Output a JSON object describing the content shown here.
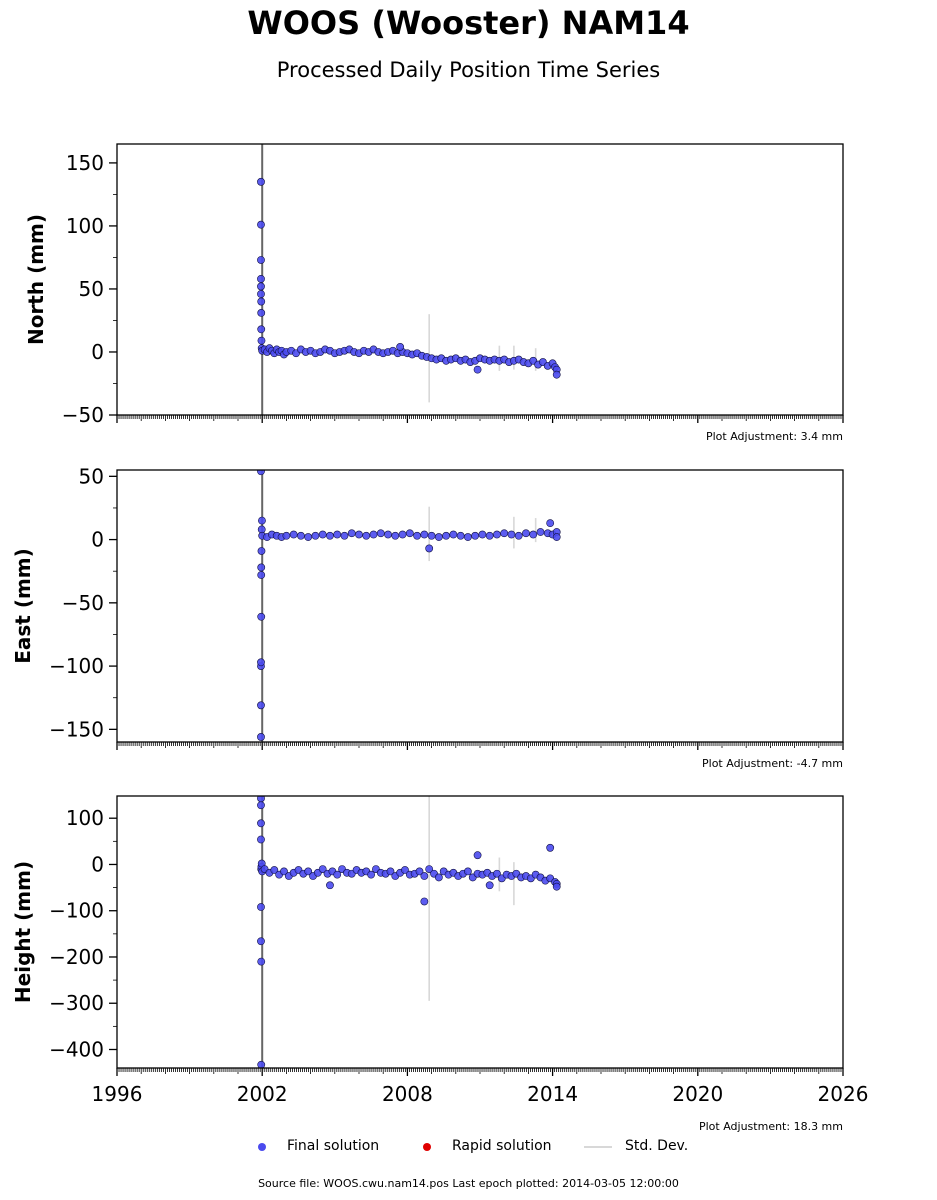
{
  "header": {
    "title": "WOOS (Wooster) NAM14",
    "subtitle": "Processed Daily Position Time Series"
  },
  "legend": {
    "final_label": "Final solution",
    "rapid_label": "Rapid solution",
    "std_label": "Std. Dev."
  },
  "footer": {
    "source": "Source file: WOOS.cwu.nam14.pos  Last epoch plotted: 2014-03-05 12:00:00"
  },
  "colors": {
    "final": "#4a4aee",
    "rapid": "#e00000",
    "std": "#d8d8d8",
    "vline": "#666666"
  },
  "chart_data": [
    {
      "type": "scatter",
      "ylabel": "North (mm)",
      "ylim": [
        -50,
        165
      ],
      "yticks": [
        -50,
        0,
        50,
        100,
        150
      ],
      "xlim": [
        1996,
        2026
      ],
      "xticks": [
        1996,
        2002,
        2008,
        2014,
        2020,
        2026
      ],
      "show_xtick_labels": false,
      "adjustment": "Plot Adjustment: 3.4 mm",
      "vline_x": 2002.0,
      "series": [
        {
          "name": "Final solution",
          "x": [
            2001.95,
            2001.95,
            2001.95,
            2001.95,
            2001.95,
            2001.95,
            2001.96,
            2001.96,
            2001.96,
            2001.97,
            2001.98,
            2002.0,
            2002.1,
            2002.2,
            2002.3,
            2002.4,
            2002.5,
            2002.6,
            2002.7,
            2002.8,
            2002.9,
            2003.0,
            2003.2,
            2003.4,
            2003.6,
            2003.8,
            2004.0,
            2004.2,
            2004.4,
            2004.6,
            2004.8,
            2005.0,
            2005.2,
            2005.4,
            2005.6,
            2005.8,
            2006.0,
            2006.2,
            2006.4,
            2006.6,
            2006.8,
            2007.0,
            2007.2,
            2007.4,
            2007.6,
            2007.8,
            2008.0,
            2008.2,
            2008.4,
            2008.6,
            2008.8,
            2009.0,
            2009.2,
            2009.4,
            2009.6,
            2009.8,
            2010.0,
            2010.2,
            2010.4,
            2010.6,
            2010.8,
            2011.0,
            2011.2,
            2011.4,
            2011.6,
            2011.8,
            2012.0,
            2012.2,
            2012.4,
            2012.6,
            2012.8,
            2013.0,
            2013.2,
            2013.4,
            2013.6,
            2013.8,
            2014.0,
            2014.1,
            2014.17,
            2014.17,
            2007.7,
            2010.9
          ],
          "y": [
            135,
            101,
            73,
            58,
            52,
            46,
            40,
            31,
            18,
            9,
            3,
            1,
            2,
            0,
            3,
            1,
            -1,
            2,
            0,
            1,
            -2,
            0,
            1,
            -1,
            2,
            0,
            1,
            -1,
            0,
            2,
            1,
            -1,
            0,
            1,
            2,
            0,
            -1,
            1,
            0,
            2,
            0,
            -1,
            0,
            1,
            -1,
            0,
            -1,
            -2,
            -1,
            -3,
            -4,
            -5,
            -6,
            -5,
            -7,
            -6,
            -5,
            -7,
            -6,
            -8,
            -7,
            -5,
            -6,
            -7,
            -6,
            -7,
            -6,
            -8,
            -7,
            -6,
            -8,
            -9,
            -7,
            -10,
            -8,
            -11,
            -9,
            -12,
            -14,
            -18,
            4,
            -14
          ]
        }
      ],
      "std_bars": [
        {
          "x": 2008.9,
          "lo": -40,
          "hi": 30
        },
        {
          "x": 2011.8,
          "lo": -15,
          "hi": 5
        },
        {
          "x": 2012.4,
          "lo": -14,
          "hi": 5
        },
        {
          "x": 2013.3,
          "lo": -15,
          "hi": 3
        }
      ]
    },
    {
      "type": "scatter",
      "ylabel": "East (mm)",
      "ylim": [
        -160,
        55
      ],
      "yticks": [
        -150,
        -100,
        -50,
        0,
        50
      ],
      "xlim": [
        1996,
        2026
      ],
      "xticks": [
        1996,
        2002,
        2008,
        2014,
        2020,
        2026
      ],
      "show_xtick_labels": false,
      "adjustment": "Plot Adjustment: -4.7 mm",
      "vline_x": 2002.0,
      "series": [
        {
          "name": "Final solution",
          "x": [
            2001.95,
            2001.95,
            2001.95,
            2001.95,
            2001.95,
            2001.96,
            2001.96,
            2001.96,
            2001.97,
            2001.98,
            2001.99,
            2002.0,
            2002.2,
            2002.4,
            2002.6,
            2002.8,
            2003.0,
            2003.3,
            2003.6,
            2003.9,
            2004.2,
            2004.5,
            2004.8,
            2005.1,
            2005.4,
            2005.7,
            2006.0,
            2006.3,
            2006.6,
            2006.9,
            2007.2,
            2007.5,
            2007.8,
            2008.1,
            2008.4,
            2008.7,
            2009.0,
            2009.3,
            2009.6,
            2009.9,
            2010.2,
            2010.5,
            2010.8,
            2011.1,
            2011.4,
            2011.7,
            2012.0,
            2012.3,
            2012.6,
            2012.9,
            2013.2,
            2013.5,
            2013.8,
            2014.0,
            2014.17,
            2014.17,
            2008.9,
            2013.9
          ],
          "y": [
            54,
            -156,
            -131,
            -100,
            -97,
            -61,
            -28,
            -22,
            -9,
            8,
            15,
            3,
            2,
            4,
            3,
            2,
            3,
            4,
            3,
            2,
            3,
            4,
            3,
            4,
            3,
            5,
            4,
            3,
            4,
            5,
            4,
            3,
            4,
            5,
            3,
            4,
            3,
            2,
            3,
            4,
            3,
            2,
            3,
            4,
            3,
            4,
            5,
            4,
            3,
            5,
            4,
            6,
            5,
            4,
            6,
            2,
            -7,
            13
          ]
        }
      ],
      "std_bars": [
        {
          "x": 2008.9,
          "lo": -17,
          "hi": 26
        },
        {
          "x": 2012.4,
          "lo": -7,
          "hi": 18
        },
        {
          "x": 2013.3,
          "lo": -2,
          "hi": 17
        }
      ]
    },
    {
      "type": "scatter",
      "ylabel": "Height (mm)",
      "ylim": [
        -440,
        148
      ],
      "yticks": [
        -400,
        -300,
        -200,
        -100,
        0,
        100
      ],
      "xlim": [
        1996,
        2026
      ],
      "xticks": [
        1996,
        2002,
        2008,
        2014,
        2020,
        2026
      ],
      "show_xtick_labels": true,
      "adjustment": "Plot Adjustment: 18.3 mm",
      "vline_x": 2002.0,
      "series": [
        {
          "name": "Final solution",
          "x": [
            2001.95,
            2001.95,
            2001.95,
            2001.95,
            2001.95,
            2001.95,
            2001.96,
            2001.96,
            2001.96,
            2001.97,
            2001.98,
            2002.0,
            2002.1,
            2002.3,
            2002.5,
            2002.7,
            2002.9,
            2003.1,
            2003.3,
            2003.5,
            2003.7,
            2003.9,
            2004.1,
            2004.3,
            2004.5,
            2004.7,
            2004.9,
            2005.1,
            2005.3,
            2005.5,
            2005.7,
            2005.9,
            2006.1,
            2006.3,
            2006.5,
            2006.7,
            2006.9,
            2007.1,
            2007.3,
            2007.5,
            2007.7,
            2007.9,
            2008.1,
            2008.3,
            2008.5,
            2008.7,
            2008.9,
            2009.1,
            2009.3,
            2009.5,
            2009.7,
            2009.9,
            2010.1,
            2010.3,
            2010.5,
            2010.7,
            2010.9,
            2011.1,
            2011.3,
            2011.5,
            2011.7,
            2011.9,
            2012.1,
            2012.3,
            2012.5,
            2012.7,
            2012.9,
            2013.1,
            2013.3,
            2013.5,
            2013.7,
            2013.9,
            2014.1,
            2014.17,
            2014.17,
            2008.7,
            2010.9,
            2013.9,
            2004.8,
            2011.4
          ],
          "y": [
            143,
            128,
            89,
            54,
            -92,
            -166,
            -210,
            -433,
            -10,
            -5,
            2,
            -15,
            -10,
            -18,
            -12,
            -22,
            -15,
            -25,
            -18,
            -12,
            -20,
            -15,
            -25,
            -18,
            -10,
            -20,
            -15,
            -22,
            -10,
            -18,
            -20,
            -12,
            -18,
            -15,
            -22,
            -10,
            -18,
            -20,
            -15,
            -25,
            -18,
            -12,
            -22,
            -20,
            -15,
            -25,
            -10,
            -20,
            -28,
            -15,
            -22,
            -18,
            -25,
            -20,
            -15,
            -28,
            -20,
            -22,
            -18,
            -25,
            -20,
            -30,
            -22,
            -25,
            -20,
            -28,
            -25,
            -30,
            -22,
            -28,
            -35,
            -30,
            -38,
            -42,
            -48,
            -80,
            20,
            36,
            -45,
            -45
          ]
        }
      ],
      "std_bars": [
        {
          "x": 2008.9,
          "lo": -295,
          "hi": 148
        },
        {
          "x": 2011.8,
          "lo": -58,
          "hi": 15
        },
        {
          "x": 2012.4,
          "lo": -88,
          "hi": 5
        }
      ]
    }
  ]
}
